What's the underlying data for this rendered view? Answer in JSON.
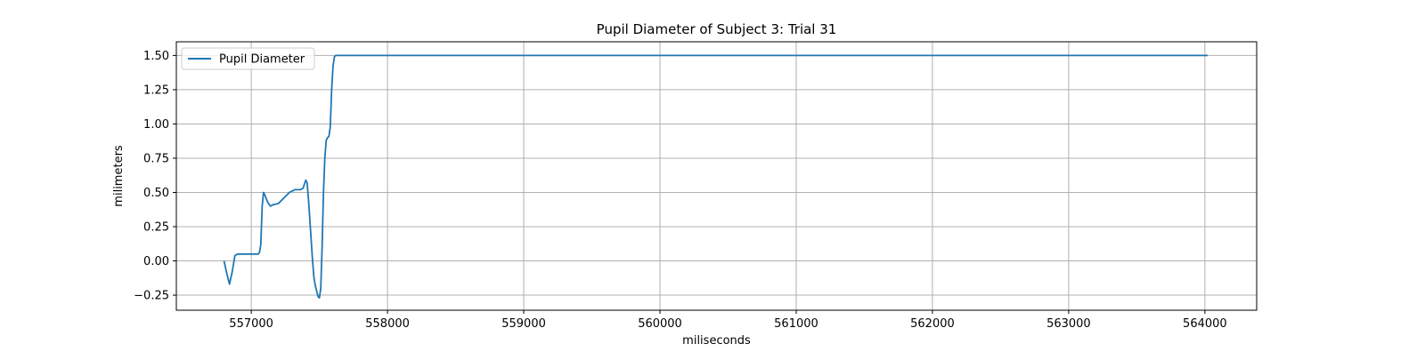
{
  "chart_data": {
    "type": "line",
    "title": "Pupil Diameter of Subject 3: Trial 31",
    "xlabel": "miliseconds",
    "ylabel": "milimeters",
    "xlim": [
      556450,
      564380
    ],
    "ylim": [
      -0.36,
      1.6
    ],
    "xticks": [
      557000,
      558000,
      559000,
      560000,
      561000,
      562000,
      563000,
      564000
    ],
    "xtick_labels": [
      "557000",
      "558000",
      "559000",
      "560000",
      "561000",
      "562000",
      "563000",
      "564000"
    ],
    "yticks": [
      -0.25,
      0.0,
      0.25,
      0.5,
      0.75,
      1.0,
      1.25,
      1.5
    ],
    "ytick_labels": [
      "−0.25",
      "0.00",
      "0.25",
      "0.50",
      "0.75",
      "1.00",
      "1.25",
      "1.50"
    ],
    "grid": true,
    "legend_position": "upper-left",
    "series": [
      {
        "name": "Pupil Diameter",
        "color": "#1f77b4",
        "x": [
          556800,
          556820,
          556840,
          556860,
          556880,
          556900,
          556950,
          557000,
          557020,
          557030,
          557040,
          557050,
          557060,
          557070,
          557080,
          557090,
          557100,
          557120,
          557140,
          557160,
          557200,
          557240,
          557280,
          557320,
          557360,
          557380,
          557390,
          557400,
          557410,
          557420,
          557430,
          557440,
          557450,
          557460,
          557470,
          557480,
          557490,
          557500,
          557510,
          557520,
          557530,
          557540,
          557550,
          557560,
          557570,
          557580,
          557590,
          557600,
          557610,
          557620,
          557650,
          557700,
          558000,
          559000,
          560000,
          561000,
          562000,
          563000,
          564000,
          564020
        ],
        "y": [
          0.0,
          -0.09,
          -0.17,
          -0.08,
          0.04,
          0.05,
          0.05,
          0.05,
          0.05,
          0.05,
          0.05,
          0.05,
          0.06,
          0.12,
          0.4,
          0.5,
          0.48,
          0.43,
          0.4,
          0.41,
          0.42,
          0.46,
          0.5,
          0.52,
          0.52,
          0.53,
          0.56,
          0.59,
          0.57,
          0.45,
          0.3,
          0.15,
          0.0,
          -0.12,
          -0.18,
          -0.22,
          -0.26,
          -0.27,
          -0.2,
          0.1,
          0.5,
          0.75,
          0.88,
          0.9,
          0.91,
          0.98,
          1.25,
          1.42,
          1.49,
          1.5,
          1.5,
          1.5,
          1.5,
          1.5,
          1.5,
          1.5,
          1.5,
          1.5,
          1.5,
          1.5
        ]
      }
    ]
  }
}
